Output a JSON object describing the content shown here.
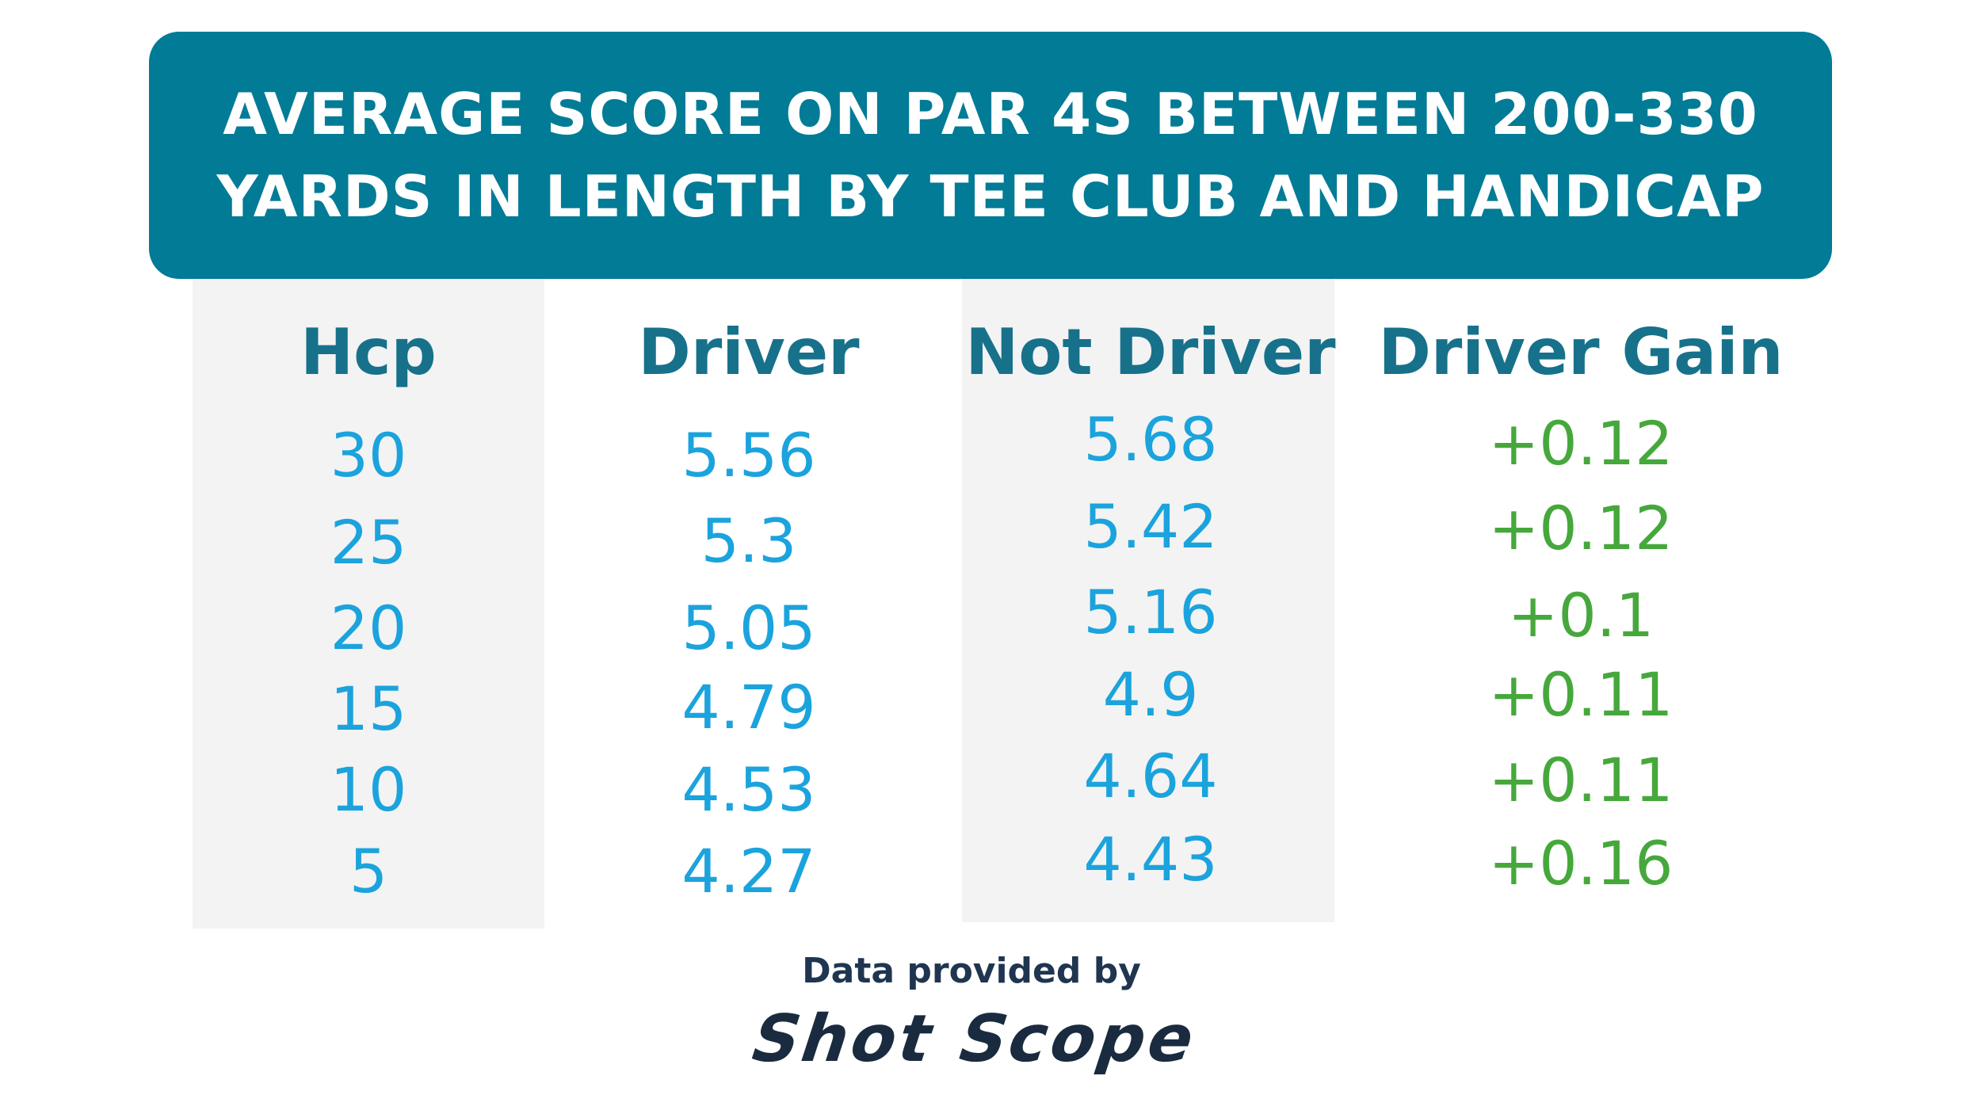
{
  "title": {
    "line1": "AVERAGE SCORE ON PAR 4S BETWEEN 200-330",
    "line2": "YARDS IN LENGTH BY TEE CLUB AND HANDICAP"
  },
  "colors": {
    "banner": "#027b96",
    "header_text": "#17718a",
    "value_blue": "#1ba3dd",
    "value_green": "#46a83c",
    "column_shading": "#f3f3f3"
  },
  "chart_data": {
    "type": "table",
    "columns": [
      "Hcp",
      "Driver",
      "Not Driver",
      "Driver Gain"
    ],
    "rows": [
      [
        "30",
        "5.56",
        "5.68",
        "+0.12"
      ],
      [
        "25",
        "5.3",
        "5.42",
        "+0.12"
      ],
      [
        "20",
        "5.05",
        "5.16",
        "+0.1"
      ],
      [
        "15",
        "4.79",
        "4.9",
        "+0.11"
      ],
      [
        "10",
        "4.53",
        "4.64",
        "+0.11"
      ],
      [
        "5",
        "4.27",
        "4.43",
        "+0.16"
      ]
    ]
  },
  "footer": {
    "label": "Data provided by",
    "brand": "Shot Scope"
  }
}
